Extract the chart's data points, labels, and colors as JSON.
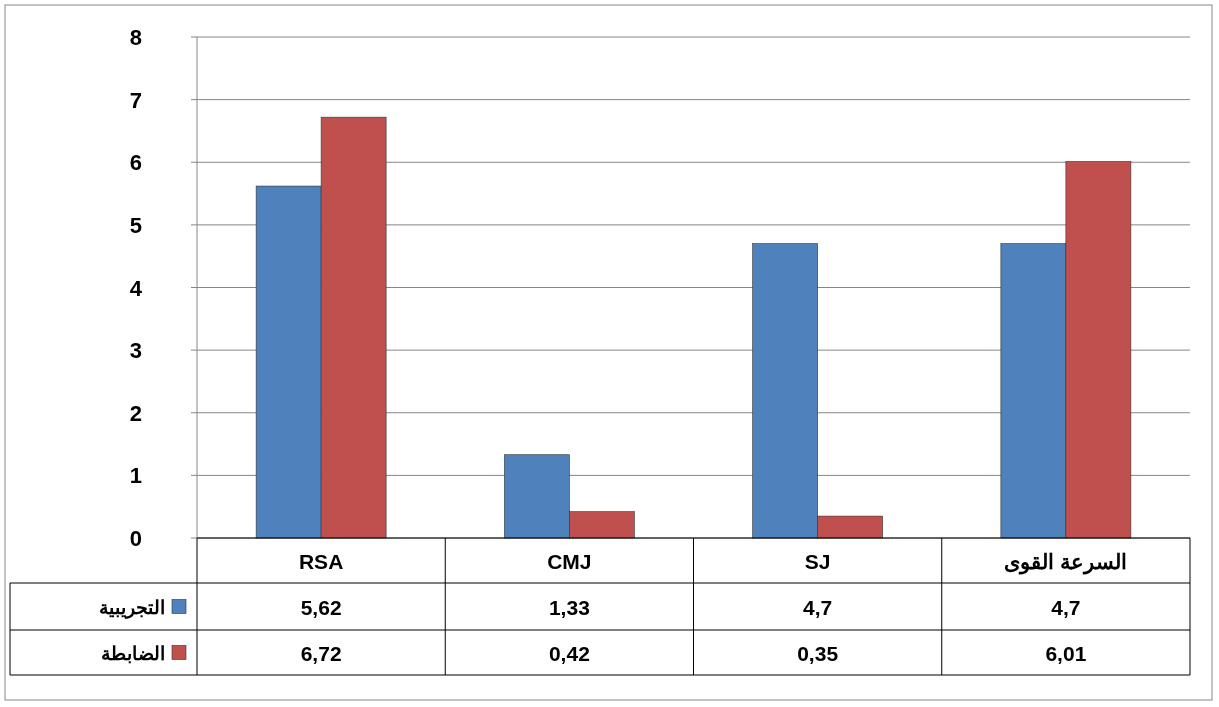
{
  "chart_data": {
    "type": "bar",
    "categories": [
      "RSA",
      "CMJ",
      "SJ",
      "السرعة القوى"
    ],
    "series": [
      {
        "name": "التجريبية",
        "color": "#4f81bd",
        "values": [
          5.62,
          1.33,
          4.7,
          4.7
        ],
        "value_labels": [
          "5,62",
          "1,33",
          "4,7",
          "4,7"
        ]
      },
      {
        "name": "الضابطة",
        "color": "#c0504d",
        "values": [
          6.72,
          0.42,
          0.35,
          6.01
        ],
        "value_labels": [
          "6,72",
          "0,42",
          "0,35",
          "6,01"
        ]
      }
    ],
    "ylim": [
      0,
      8
    ],
    "yticks": [
      0,
      1,
      2,
      3,
      4,
      5,
      6,
      7,
      8
    ],
    "grid": "y",
    "legend": "bottom"
  }
}
